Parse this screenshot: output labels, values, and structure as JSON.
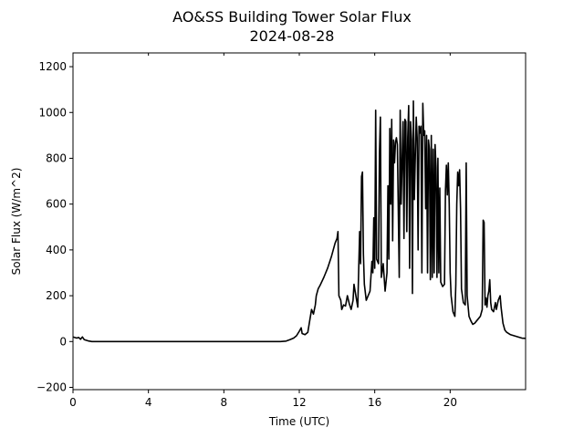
{
  "chart_data": {
    "type": "line",
    "title": "AO&SS Building Tower Solar Flux",
    "subtitle": "2024-08-28",
    "xlabel": "Time (UTC)",
    "ylabel": "Solar Flux (W/m^2)",
    "xlim": [
      0,
      24
    ],
    "ylim": [
      -210,
      1260
    ],
    "xticks": [
      0,
      4,
      8,
      12,
      16,
      20
    ],
    "xtick_labels": [
      "0",
      "4",
      "8",
      "12",
      "16",
      "20"
    ],
    "yticks": [
      -200,
      0,
      200,
      400,
      600,
      800,
      1000,
      1200
    ],
    "ytick_labels": [
      "−200",
      "0",
      "200",
      "400",
      "600",
      "800",
      "1000",
      "1200"
    ],
    "grid": false,
    "series": [
      {
        "color": "#000000",
        "points": [
          [
            0.0,
            20
          ],
          [
            0.2,
            15
          ],
          [
            0.3,
            18
          ],
          [
            0.4,
            10
          ],
          [
            0.5,
            20
          ],
          [
            0.6,
            8
          ],
          [
            0.8,
            3
          ],
          [
            1.0,
            0
          ],
          [
            2.0,
            0
          ],
          [
            4.0,
            0
          ],
          [
            6.0,
            0
          ],
          [
            8.0,
            0
          ],
          [
            10.0,
            0
          ],
          [
            11.0,
            0
          ],
          [
            11.3,
            2
          ],
          [
            11.5,
            8
          ],
          [
            11.7,
            15
          ],
          [
            11.85,
            25
          ],
          [
            12.0,
            45
          ],
          [
            12.1,
            60
          ],
          [
            12.15,
            35
          ],
          [
            12.3,
            30
          ],
          [
            12.45,
            40
          ],
          [
            12.55,
            90
          ],
          [
            12.65,
            140
          ],
          [
            12.75,
            120
          ],
          [
            12.85,
            160
          ],
          [
            12.9,
            200
          ],
          [
            13.0,
            230
          ],
          [
            13.1,
            245
          ],
          [
            13.3,
            280
          ],
          [
            13.5,
            320
          ],
          [
            13.7,
            370
          ],
          [
            13.9,
            430
          ],
          [
            14.0,
            450
          ],
          [
            14.05,
            480
          ],
          [
            14.1,
            200
          ],
          [
            14.2,
            180
          ],
          [
            14.25,
            140
          ],
          [
            14.35,
            160
          ],
          [
            14.45,
            155
          ],
          [
            14.55,
            200
          ],
          [
            14.65,
            165
          ],
          [
            14.75,
            140
          ],
          [
            14.85,
            180
          ],
          [
            14.9,
            250
          ],
          [
            15.0,
            200
          ],
          [
            15.1,
            150
          ],
          [
            15.2,
            480
          ],
          [
            15.25,
            340
          ],
          [
            15.3,
            720
          ],
          [
            15.35,
            740
          ],
          [
            15.4,
            380
          ],
          [
            15.45,
            250
          ],
          [
            15.55,
            180
          ],
          [
            15.65,
            200
          ],
          [
            15.75,
            220
          ],
          [
            15.85,
            350
          ],
          [
            15.9,
            300
          ],
          [
            15.95,
            540
          ],
          [
            16.0,
            320
          ],
          [
            16.05,
            1010
          ],
          [
            16.1,
            360
          ],
          [
            16.2,
            340
          ],
          [
            16.25,
            820
          ],
          [
            16.3,
            980
          ],
          [
            16.35,
            280
          ],
          [
            16.45,
            340
          ],
          [
            16.55,
            220
          ],
          [
            16.65,
            300
          ],
          [
            16.7,
            680
          ],
          [
            16.75,
            360
          ],
          [
            16.8,
            930
          ],
          [
            16.85,
            600
          ],
          [
            16.9,
            970
          ],
          [
            16.95,
            440
          ],
          [
            17.0,
            880
          ],
          [
            17.05,
            780
          ],
          [
            17.1,
            870
          ],
          [
            17.15,
            890
          ],
          [
            17.2,
            860
          ],
          [
            17.3,
            280
          ],
          [
            17.35,
            1010
          ],
          [
            17.4,
            600
          ],
          [
            17.5,
            960
          ],
          [
            17.55,
            450
          ],
          [
            17.6,
            970
          ],
          [
            17.65,
            960
          ],
          [
            17.7,
            480
          ],
          [
            17.75,
            890
          ],
          [
            17.8,
            1030
          ],
          [
            17.85,
            320
          ],
          [
            17.9,
            960
          ],
          [
            17.95,
            880
          ],
          [
            18.0,
            210
          ],
          [
            18.05,
            1050
          ],
          [
            18.1,
            620
          ],
          [
            18.2,
            980
          ],
          [
            18.25,
            890
          ],
          [
            18.3,
            400
          ],
          [
            18.35,
            940
          ],
          [
            18.4,
            910
          ],
          [
            18.45,
            940
          ],
          [
            18.5,
            300
          ],
          [
            18.55,
            1040
          ],
          [
            18.6,
            900
          ],
          [
            18.65,
            920
          ],
          [
            18.7,
            580
          ],
          [
            18.75,
            900
          ],
          [
            18.8,
            300
          ],
          [
            18.85,
            880
          ],
          [
            18.9,
            840
          ],
          [
            18.95,
            270
          ],
          [
            19.0,
            900
          ],
          [
            19.05,
            280
          ],
          [
            19.1,
            840
          ],
          [
            19.15,
            300
          ],
          [
            19.2,
            860
          ],
          [
            19.25,
            760
          ],
          [
            19.3,
            280
          ],
          [
            19.35,
            800
          ],
          [
            19.4,
            300
          ],
          [
            19.45,
            670
          ],
          [
            19.5,
            260
          ],
          [
            19.6,
            240
          ],
          [
            19.7,
            250
          ],
          [
            19.75,
            660
          ],
          [
            19.8,
            770
          ],
          [
            19.85,
            640
          ],
          [
            19.9,
            780
          ],
          [
            19.95,
            600
          ],
          [
            20.0,
            300
          ],
          [
            20.05,
            200
          ],
          [
            20.15,
            130
          ],
          [
            20.25,
            110
          ],
          [
            20.3,
            250
          ],
          [
            20.35,
            600
          ],
          [
            20.4,
            740
          ],
          [
            20.45,
            680
          ],
          [
            20.5,
            750
          ],
          [
            20.55,
            580
          ],
          [
            20.6,
            230
          ],
          [
            20.7,
            170
          ],
          [
            20.8,
            160
          ],
          [
            20.85,
            780
          ],
          [
            20.9,
            200
          ],
          [
            21.0,
            110
          ],
          [
            21.1,
            90
          ],
          [
            21.2,
            75
          ],
          [
            21.3,
            80
          ],
          [
            21.4,
            90
          ],
          [
            21.5,
            100
          ],
          [
            21.6,
            110
          ],
          [
            21.7,
            140
          ],
          [
            21.75,
            530
          ],
          [
            21.8,
            520
          ],
          [
            21.85,
            160
          ],
          [
            21.9,
            190
          ],
          [
            21.95,
            150
          ],
          [
            22.0,
            200
          ],
          [
            22.05,
            220
          ],
          [
            22.1,
            270
          ],
          [
            22.15,
            170
          ],
          [
            22.2,
            140
          ],
          [
            22.3,
            130
          ],
          [
            22.4,
            170
          ],
          [
            22.45,
            140
          ],
          [
            22.55,
            180
          ],
          [
            22.65,
            200
          ],
          [
            22.7,
            150
          ],
          [
            22.8,
            80
          ],
          [
            22.9,
            50
          ],
          [
            23.0,
            40
          ],
          [
            23.2,
            30
          ],
          [
            23.4,
            25
          ],
          [
            23.6,
            20
          ],
          [
            23.8,
            15
          ],
          [
            24.0,
            14
          ]
        ]
      }
    ]
  }
}
